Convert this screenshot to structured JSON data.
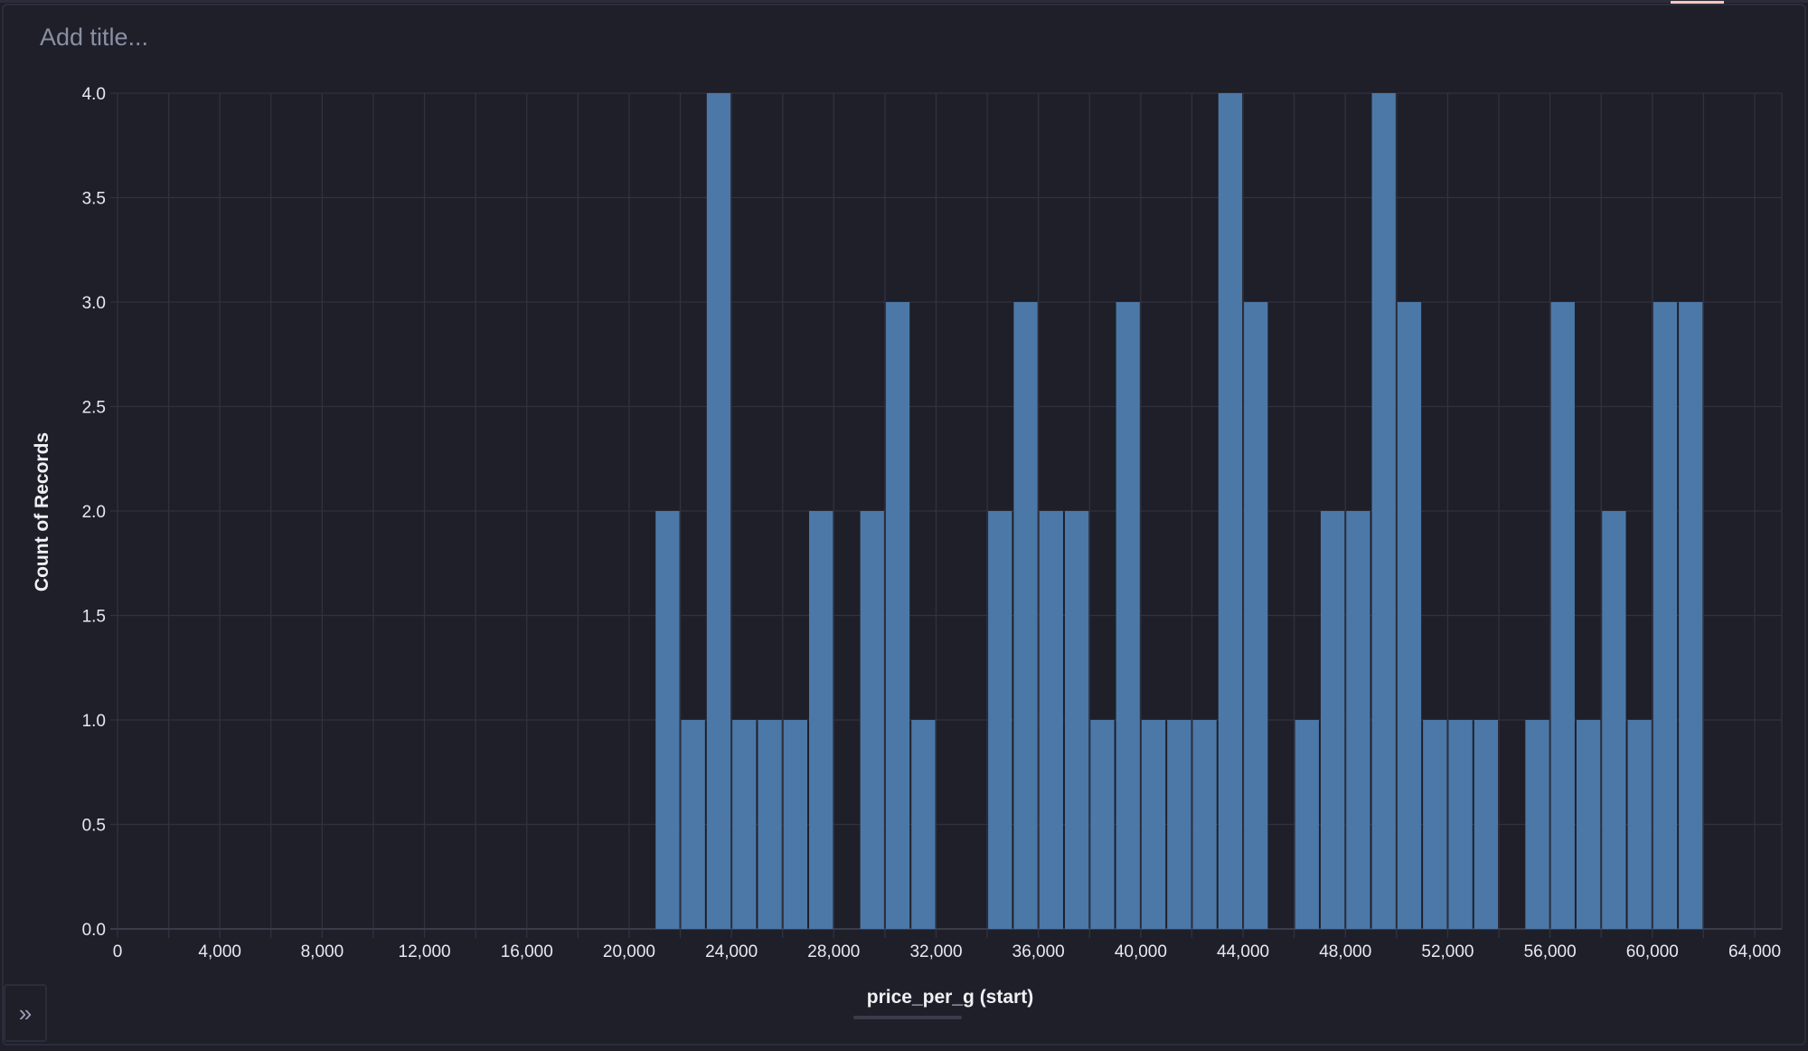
{
  "title_placeholder": "Add title...",
  "expand_icon": "»",
  "colors": {
    "bar": "#4c78a8",
    "grid": "#30323f",
    "background": "#1e1f29"
  },
  "chart_data": {
    "type": "bar",
    "title": "",
    "xlabel": "price_per_g (start)",
    "ylabel": "Count of Records",
    "bin_width": 1000,
    "bins_start": [
      21000,
      22000,
      23000,
      24000,
      25000,
      26000,
      27000,
      28000,
      29000,
      30000,
      31000,
      32000,
      33000,
      34000,
      35000,
      36000,
      37000,
      38000,
      39000,
      40000,
      41000,
      42000,
      43000,
      44000,
      45000,
      46000,
      47000,
      48000,
      49000,
      50000,
      51000,
      52000,
      53000,
      54000,
      55000,
      56000,
      57000,
      58000,
      59000,
      60000,
      61000
    ],
    "values": [
      2,
      1,
      4,
      1,
      1,
      1,
      2,
      0,
      2,
      3,
      1,
      0,
      0,
      2,
      3,
      2,
      2,
      1,
      3,
      1,
      1,
      1,
      4,
      3,
      0,
      1,
      2,
      2,
      4,
      3,
      1,
      1,
      1,
      0,
      1,
      3,
      1,
      2,
      1,
      3,
      3
    ],
    "xlim": [
      0,
      64000
    ],
    "ylim": [
      0,
      4
    ],
    "xticks": [
      "0",
      "4,000",
      "8,000",
      "12,000",
      "16,000",
      "20,000",
      "24,000",
      "28,000",
      "32,000",
      "36,000",
      "40,000",
      "44,000",
      "48,000",
      "52,000",
      "56,000",
      "60,000",
      "64,000"
    ],
    "yticks": [
      "0.0",
      "0.5",
      "1.0",
      "1.5",
      "2.0",
      "2.5",
      "3.0",
      "3.5",
      "4.0"
    ],
    "grid": true
  }
}
